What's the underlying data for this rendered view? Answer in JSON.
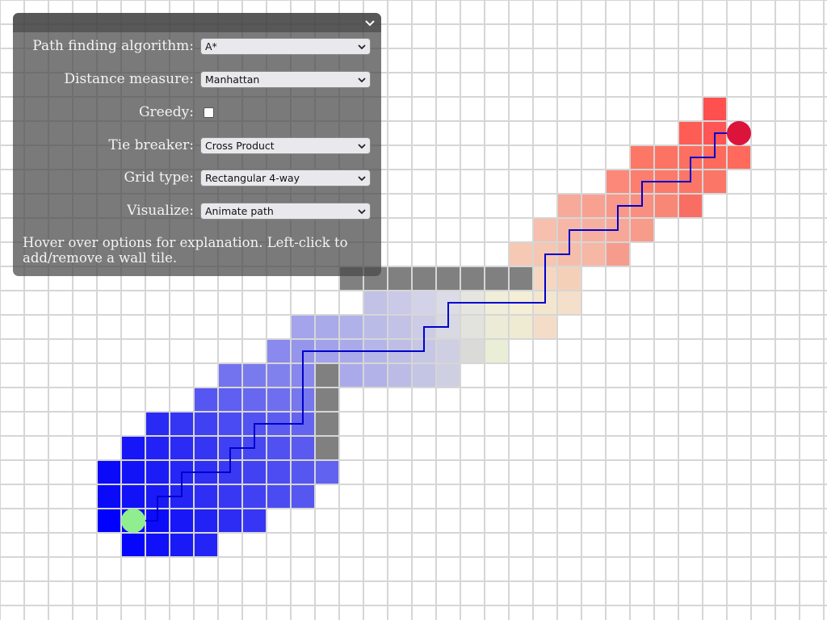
{
  "panel": {
    "rows": [
      {
        "label": "Path finding algorithm:",
        "value": "A*"
      },
      {
        "label": "Distance measure:",
        "value": "Manhattan"
      },
      {
        "label": "Greedy:",
        "checked": false
      },
      {
        "label": "Tie breaker:",
        "value": "Cross Product"
      },
      {
        "label": "Grid type:",
        "value": "Rectangular 4-way"
      },
      {
        "label": "Visualize:",
        "value": "Animate path"
      }
    ],
    "help_text": "Hover over options for explanation. Left-click to add/remove a wall tile."
  },
  "colors": {
    "grid_line": "#d6d6d6",
    "wall": "#808080",
    "path": "#0000cd",
    "start": "#90ee90",
    "goal": "#dc143c",
    "panel_bg": "#464646"
  },
  "grid": {
    "cell_size_px": 30,
    "columns": 35,
    "rows": 26,
    "start": {
      "col": 5,
      "row": 21
    },
    "goal": {
      "col": 30,
      "row": 5
    },
    "walls": [
      [
        14,
        11
      ],
      [
        15,
        11
      ],
      [
        16,
        11
      ],
      [
        17,
        11
      ],
      [
        18,
        11
      ],
      [
        19,
        11
      ],
      [
        20,
        11
      ],
      [
        21,
        11
      ],
      [
        13,
        15
      ],
      [
        13,
        16
      ],
      [
        13,
        17
      ],
      [
        13,
        18
      ]
    ],
    "visited": [
      [
        29,
        4,
        "#ff5050"
      ],
      [
        28,
        5,
        "#fd5d55"
      ],
      [
        29,
        5,
        "#ff5555"
      ],
      [
        26,
        6,
        "#fc7766"
      ],
      [
        27,
        6,
        "#fd7363"
      ],
      [
        28,
        6,
        "#fd6f60"
      ],
      [
        29,
        6,
        "#fd6b5d"
      ],
      [
        30,
        6,
        "#ff6a5c"
      ],
      [
        25,
        7,
        "#fb8879"
      ],
      [
        26,
        7,
        "#fb7e6e"
      ],
      [
        27,
        7,
        "#fb7a6a"
      ],
      [
        28,
        7,
        "#fb7666"
      ],
      [
        29,
        7,
        "#fa7666"
      ],
      [
        23,
        8,
        "#f7a99a"
      ],
      [
        24,
        8,
        "#f9a191"
      ],
      [
        25,
        8,
        "#f99888"
      ],
      [
        26,
        8,
        "#f98f7f"
      ],
      [
        27,
        8,
        "#f88777"
      ],
      [
        28,
        8,
        "#f86e62"
      ],
      [
        22,
        9,
        "#f6bfae"
      ],
      [
        23,
        9,
        "#f7b7a7"
      ],
      [
        24,
        9,
        "#f7b0a0"
      ],
      [
        25,
        9,
        "#f7a797"
      ],
      [
        26,
        9,
        "#f79b8b"
      ],
      [
        21,
        10,
        "#f5c9b4"
      ],
      [
        22,
        10,
        "#f5c6b1"
      ],
      [
        23,
        10,
        "#f6bdab"
      ],
      [
        24,
        10,
        "#f6b7a5"
      ],
      [
        25,
        10,
        "#f69c8d"
      ],
      [
        22,
        11,
        "#f5d7c1"
      ],
      [
        23,
        11,
        "#f5d0b8"
      ],
      [
        15,
        12,
        "#c2c1e6"
      ],
      [
        16,
        12,
        "#cac9e8"
      ],
      [
        17,
        12,
        "#d2d2e9"
      ],
      [
        18,
        12,
        "#dcdce8"
      ],
      [
        19,
        12,
        "#e6e6e0"
      ],
      [
        20,
        12,
        "#efeed9"
      ],
      [
        21,
        12,
        "#f3eed5"
      ],
      [
        22,
        12,
        "#f3e6cf"
      ],
      [
        23,
        12,
        "#f4dfcb"
      ],
      [
        12,
        13,
        "#a3a4eb"
      ],
      [
        13,
        13,
        "#a9aaea"
      ],
      [
        14,
        13,
        "#b1b1ea"
      ],
      [
        15,
        13,
        "#babbe7"
      ],
      [
        16,
        13,
        "#c2c2e6"
      ],
      [
        17,
        13,
        "#cccce6"
      ],
      [
        18,
        13,
        "#d9d9e4"
      ],
      [
        19,
        13,
        "#e3e3dd"
      ],
      [
        20,
        13,
        "#ebebd8"
      ],
      [
        21,
        13,
        "#efebd2"
      ],
      [
        22,
        13,
        "#f4ddc8"
      ],
      [
        11,
        14,
        "#8989ee"
      ],
      [
        12,
        14,
        "#9595ec"
      ],
      [
        13,
        14,
        "#a1a2eb"
      ],
      [
        14,
        14,
        "#aaaaea"
      ],
      [
        15,
        14,
        "#b4b5e8"
      ],
      [
        16,
        14,
        "#bdbde6"
      ],
      [
        17,
        14,
        "#c6c6e5"
      ],
      [
        18,
        14,
        "#cfcfe3"
      ],
      [
        19,
        14,
        "#dadad9"
      ],
      [
        20,
        14,
        "#eaeed6"
      ],
      [
        9,
        15,
        "#7373f0"
      ],
      [
        10,
        15,
        "#7a7aef"
      ],
      [
        11,
        15,
        "#8181ee"
      ],
      [
        12,
        15,
        "#8787ee"
      ],
      [
        14,
        15,
        "#aaaaea"
      ],
      [
        15,
        15,
        "#b2b2e8"
      ],
      [
        16,
        15,
        "#bbbbe6"
      ],
      [
        17,
        15,
        "#c4c4e4"
      ],
      [
        18,
        15,
        "#cfcfe2"
      ],
      [
        8,
        16,
        "#5656f2"
      ],
      [
        9,
        16,
        "#5f5ff1"
      ],
      [
        10,
        16,
        "#6767f0"
      ],
      [
        11,
        16,
        "#6e6eef"
      ],
      [
        12,
        16,
        "#7676ee"
      ],
      [
        6,
        17,
        "#2a2af5"
      ],
      [
        7,
        17,
        "#3535f4"
      ],
      [
        8,
        17,
        "#4141f4"
      ],
      [
        9,
        17,
        "#4b4bf3"
      ],
      [
        10,
        17,
        "#5353f2"
      ],
      [
        11,
        17,
        "#5c5cf1"
      ],
      [
        12,
        17,
        "#6464f0"
      ],
      [
        5,
        18,
        "#1616f8"
      ],
      [
        6,
        18,
        "#2222f6"
      ],
      [
        7,
        18,
        "#2b2bf5"
      ],
      [
        8,
        18,
        "#3535f4"
      ],
      [
        9,
        18,
        "#3f3ff4"
      ],
      [
        10,
        18,
        "#4848f3"
      ],
      [
        11,
        18,
        "#5151f2"
      ],
      [
        12,
        18,
        "#5a5af1"
      ],
      [
        4,
        19,
        "#0a0af9"
      ],
      [
        5,
        19,
        "#1313f8"
      ],
      [
        6,
        19,
        "#1c1cf7"
      ],
      [
        7,
        19,
        "#2626f6"
      ],
      [
        8,
        19,
        "#2f2ff5"
      ],
      [
        9,
        19,
        "#3939f4"
      ],
      [
        10,
        19,
        "#4242f3"
      ],
      [
        11,
        19,
        "#4c4cf2"
      ],
      [
        12,
        19,
        "#5656f1"
      ],
      [
        13,
        19,
        "#6262f0"
      ],
      [
        4,
        20,
        "#0a0af9"
      ],
      [
        5,
        20,
        "#1212f8"
      ],
      [
        6,
        20,
        "#1a1af7"
      ],
      [
        7,
        20,
        "#2424f6"
      ],
      [
        8,
        20,
        "#2e2ef5"
      ],
      [
        9,
        20,
        "#3838f4"
      ],
      [
        10,
        20,
        "#4141f3"
      ],
      [
        11,
        20,
        "#4b4bf2"
      ],
      [
        12,
        20,
        "#5656f1"
      ],
      [
        4,
        21,
        "#0000ff"
      ],
      [
        5,
        21,
        "#0202fe"
      ],
      [
        6,
        21,
        "#0c0cf9"
      ],
      [
        7,
        21,
        "#1717f8"
      ],
      [
        8,
        21,
        "#2222f6"
      ],
      [
        9,
        21,
        "#2c2cf5"
      ],
      [
        10,
        21,
        "#3636f4"
      ],
      [
        5,
        22,
        "#0606fc"
      ],
      [
        6,
        22,
        "#1010f9"
      ],
      [
        7,
        22,
        "#1a1af7"
      ],
      [
        8,
        22,
        "#2424f6"
      ]
    ],
    "path": [
      [
        5,
        21
      ],
      [
        6,
        21
      ],
      [
        6,
        20
      ],
      [
        7,
        20
      ],
      [
        7,
        19
      ],
      [
        8,
        19
      ],
      [
        9,
        19
      ],
      [
        9,
        18
      ],
      [
        10,
        18
      ],
      [
        10,
        17
      ],
      [
        11,
        17
      ],
      [
        12,
        17
      ],
      [
        12,
        16
      ],
      [
        12,
        15
      ],
      [
        12,
        14
      ],
      [
        13,
        14
      ],
      [
        14,
        14
      ],
      [
        15,
        14
      ],
      [
        16,
        14
      ],
      [
        17,
        14
      ],
      [
        17,
        13
      ],
      [
        18,
        13
      ],
      [
        18,
        12
      ],
      [
        19,
        12
      ],
      [
        20,
        12
      ],
      [
        21,
        12
      ],
      [
        22,
        12
      ],
      [
        22,
        11
      ],
      [
        22,
        10
      ],
      [
        23,
        10
      ],
      [
        23,
        9
      ],
      [
        24,
        9
      ],
      [
        25,
        9
      ],
      [
        25,
        8
      ],
      [
        26,
        8
      ],
      [
        26,
        7
      ],
      [
        27,
        7
      ],
      [
        28,
        7
      ],
      [
        28,
        6
      ],
      [
        29,
        6
      ],
      [
        29,
        5
      ],
      [
        30,
        5
      ]
    ]
  }
}
